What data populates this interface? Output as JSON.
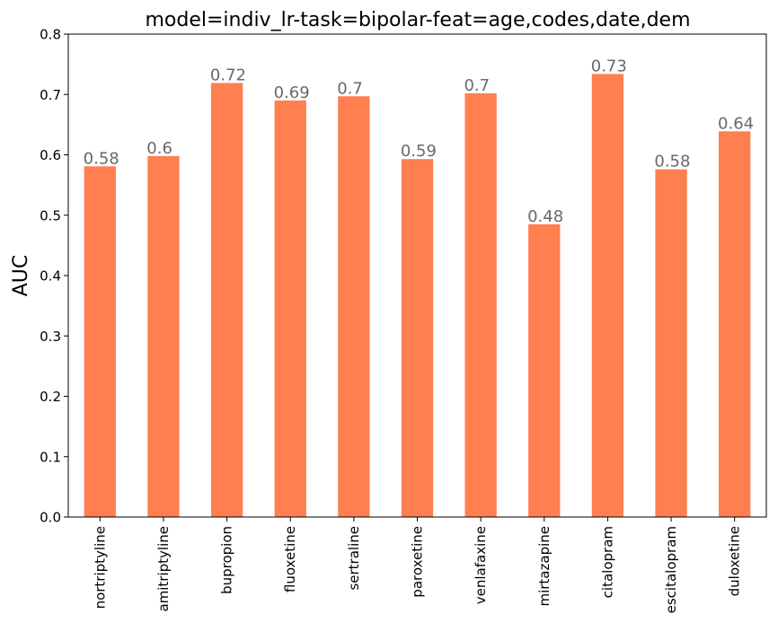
{
  "chart_data": {
    "type": "bar",
    "title": "model=indiv_lr-task=bipolar-feat=age,codes,date,dem",
    "xlabel": "",
    "ylabel": "AUC",
    "ylim": [
      0,
      0.8
    ],
    "yticks": [
      0.0,
      0.1,
      0.2,
      0.3,
      0.4,
      0.5,
      0.6,
      0.7,
      0.8
    ],
    "ytick_labels": [
      "0.0",
      "0.1",
      "0.2",
      "0.3",
      "0.4",
      "0.5",
      "0.6",
      "0.7",
      "0.8"
    ],
    "grid": false,
    "bar_color": "#FF7F50",
    "label_color": "#696969",
    "categories": [
      "nortriptyline",
      "amitriptyline",
      "bupropion",
      "fluoxetine",
      "sertraline",
      "paroxetine",
      "venlafaxine",
      "mirtazapine",
      "citalopram",
      "escitalopram",
      "duloxetine"
    ],
    "values": [
      0.581,
      0.598,
      0.719,
      0.69,
      0.697,
      0.593,
      0.702,
      0.485,
      0.734,
      0.576,
      0.639
    ],
    "data_labels": [
      "0.58",
      "0.6",
      "0.72",
      "0.69",
      "0.7",
      "0.59",
      "0.7",
      "0.48",
      "0.73",
      "0.58",
      "0.64"
    ]
  }
}
